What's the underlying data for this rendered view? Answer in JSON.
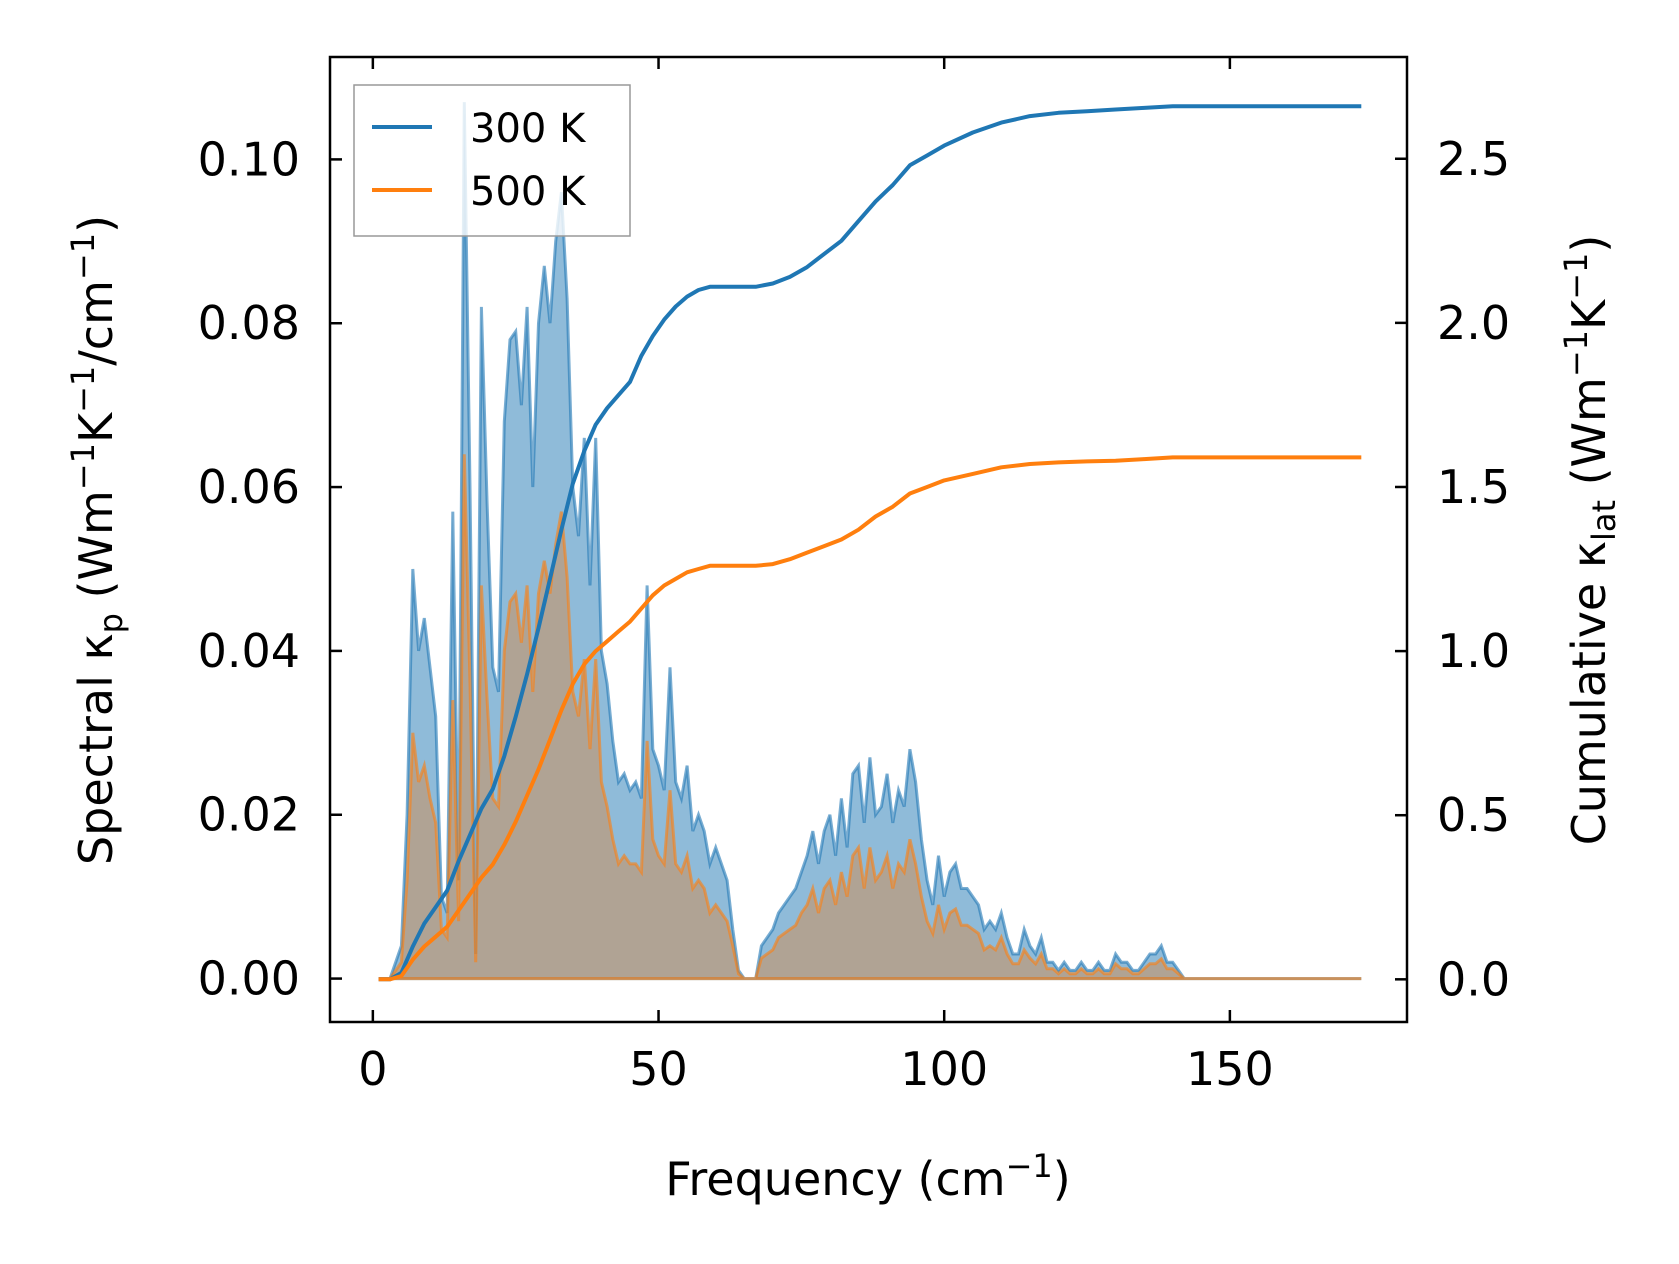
{
  "chart_data": {
    "type": "line",
    "title": "",
    "xlabel": "Frequency (cm",
    "xlabel_sup": "−1",
    "xlabel_end": ")",
    "ylabel_left": {
      "pre": "Spectral κ",
      "sub": "p",
      "a": " (Wm",
      "s1": "−1",
      "b": "K",
      "s2": "−1",
      "c": "/cm",
      "s3": "−1",
      "d": ")"
    },
    "ylabel_right": {
      "pre": "Cumulative κ",
      "sub": "lat",
      "a": " (Wm",
      "s1": "−1",
      "b": "K",
      "s2": "−1",
      "c": ")"
    },
    "xlim": [
      -7.5,
      181
    ],
    "ylim_left": [
      -0.0053,
      0.1125
    ],
    "ylim_right": [
      -0.13,
      2.81
    ],
    "x_ticks": [
      0,
      50,
      100,
      150
    ],
    "x_tick_labels": [
      "0",
      "50",
      "100",
      "150"
    ],
    "y_left_ticks": [
      0.0,
      0.02,
      0.04,
      0.06,
      0.08,
      0.1
    ],
    "y_left_tick_labels": [
      "0.00",
      "0.02",
      "0.04",
      "0.06",
      "0.08",
      "0.10"
    ],
    "y_right_ticks": [
      0.0,
      0.5,
      1.0,
      1.5,
      2.0,
      2.5
    ],
    "y_right_tick_labels": [
      "0.0",
      "0.5",
      "1.0",
      "1.5",
      "2.0",
      "2.5"
    ],
    "legend": {
      "placement": "top-left",
      "entries": [
        {
          "name": "300 K",
          "color": "#1f77b4"
        },
        {
          "name": "500 K",
          "color": "#ff7f0e"
        }
      ]
    },
    "series": [
      {
        "name": "300 K",
        "axis": "left",
        "kind": "spectral-filled",
        "color": "#1f77b4",
        "fill": "#1f77b4",
        "x": [
          1,
          3,
          5,
          6,
          7,
          8,
          9,
          10,
          11,
          12,
          13,
          14,
          15,
          16,
          17,
          18,
          19,
          20,
          21,
          22,
          23,
          24,
          25,
          26,
          27,
          28,
          29,
          30,
          31,
          32,
          33,
          34,
          35,
          36,
          37,
          38,
          39,
          40,
          41,
          42,
          43,
          44,
          45,
          46,
          47,
          48,
          49,
          50,
          51,
          52,
          53,
          54,
          55,
          56,
          57,
          58,
          59,
          60,
          61,
          62,
          63,
          64,
          65,
          66,
          67,
          68,
          69,
          70,
          71,
          72,
          73,
          74,
          75,
          76,
          77,
          78,
          79,
          80,
          81,
          82,
          83,
          84,
          85,
          86,
          87,
          88,
          89,
          90,
          91,
          92,
          93,
          94,
          95,
          96,
          97,
          98,
          99,
          100,
          101,
          102,
          103,
          104,
          105,
          106,
          107,
          108,
          109,
          110,
          111,
          112,
          113,
          114,
          115,
          116,
          117,
          118,
          119,
          120,
          121,
          122,
          123,
          124,
          125,
          126,
          127,
          128,
          129,
          130,
          131,
          132,
          133,
          134,
          135,
          136,
          137,
          138,
          139,
          140,
          141,
          142,
          143,
          145,
          150,
          160,
          173
        ],
        "values": [
          0,
          0,
          0.004,
          0.02,
          0.05,
          0.04,
          0.044,
          0.038,
          0.032,
          0.01,
          0.008,
          0.057,
          0.012,
          0.107,
          0.06,
          0.003,
          0.082,
          0.058,
          0.038,
          0.035,
          0.068,
          0.078,
          0.079,
          0.07,
          0.082,
          0.06,
          0.08,
          0.087,
          0.08,
          0.09,
          0.096,
          0.083,
          0.06,
          0.054,
          0.066,
          0.048,
          0.066,
          0.04,
          0.036,
          0.029,
          0.024,
          0.025,
          0.023,
          0.024,
          0.022,
          0.048,
          0.028,
          0.026,
          0.023,
          0.038,
          0.024,
          0.022,
          0.026,
          0.018,
          0.02,
          0.018,
          0.014,
          0.016,
          0.014,
          0.012,
          0.006,
          0.001,
          0,
          0,
          0,
          0.004,
          0.005,
          0.006,
          0.008,
          0.009,
          0.01,
          0.011,
          0.013,
          0.015,
          0.018,
          0.014,
          0.018,
          0.02,
          0.015,
          0.022,
          0.016,
          0.025,
          0.026,
          0.019,
          0.027,
          0.02,
          0.021,
          0.025,
          0.019,
          0.023,
          0.021,
          0.028,
          0.024,
          0.017,
          0.012,
          0.009,
          0.015,
          0.01,
          0.013,
          0.014,
          0.011,
          0.011,
          0.01,
          0.009,
          0.006,
          0.007,
          0.006,
          0.008,
          0.005,
          0.003,
          0.003,
          0.006,
          0.004,
          0.003,
          0.005,
          0.002,
          0.002,
          0.001,
          0.002,
          0.001,
          0.001,
          0.002,
          0.001,
          0.001,
          0.002,
          0.001,
          0.001,
          0.003,
          0.002,
          0.002,
          0.001,
          0.001,
          0.002,
          0.003,
          0.003,
          0.004,
          0.002,
          0.002,
          0.001,
          0,
          0,
          0,
          0,
          0,
          0
        ]
      },
      {
        "name": "500 K",
        "axis": "left",
        "kind": "spectral-filled",
        "color": "#ff7f0e",
        "fill": "#d28c50",
        "x": [
          1,
          3,
          5,
          6,
          7,
          8,
          9,
          10,
          11,
          12,
          13,
          14,
          15,
          16,
          17,
          18,
          19,
          20,
          21,
          22,
          23,
          24,
          25,
          26,
          27,
          28,
          29,
          30,
          31,
          32,
          33,
          34,
          35,
          36,
          37,
          38,
          39,
          40,
          41,
          42,
          43,
          44,
          45,
          46,
          47,
          48,
          49,
          50,
          51,
          52,
          53,
          54,
          55,
          56,
          57,
          58,
          59,
          60,
          61,
          62,
          63,
          64,
          65,
          66,
          67,
          68,
          69,
          70,
          71,
          72,
          73,
          74,
          75,
          76,
          77,
          78,
          79,
          80,
          81,
          82,
          83,
          84,
          85,
          86,
          87,
          88,
          89,
          90,
          91,
          92,
          93,
          94,
          95,
          96,
          97,
          98,
          99,
          100,
          101,
          102,
          103,
          104,
          105,
          106,
          107,
          108,
          109,
          110,
          111,
          112,
          113,
          114,
          115,
          116,
          117,
          118,
          119,
          120,
          121,
          122,
          123,
          124,
          125,
          126,
          127,
          128,
          129,
          130,
          131,
          132,
          133,
          134,
          135,
          136,
          137,
          138,
          139,
          140,
          141,
          142,
          143,
          145,
          150,
          160,
          173
        ],
        "values": [
          0,
          0,
          0.002,
          0.012,
          0.03,
          0.024,
          0.026,
          0.022,
          0.019,
          0.006,
          0.005,
          0.034,
          0.007,
          0.064,
          0.036,
          0.002,
          0.048,
          0.034,
          0.022,
          0.021,
          0.04,
          0.046,
          0.047,
          0.041,
          0.048,
          0.035,
          0.047,
          0.051,
          0.047,
          0.053,
          0.057,
          0.049,
          0.035,
          0.032,
          0.039,
          0.028,
          0.039,
          0.024,
          0.021,
          0.017,
          0.014,
          0.015,
          0.014,
          0.014,
          0.013,
          0.029,
          0.017,
          0.015,
          0.014,
          0.023,
          0.014,
          0.013,
          0.015,
          0.011,
          0.012,
          0.011,
          0.008,
          0.009,
          0.008,
          0.007,
          0.004,
          0.0006,
          0,
          0,
          0,
          0.0025,
          0.003,
          0.0035,
          0.005,
          0.0055,
          0.006,
          0.0065,
          0.008,
          0.009,
          0.011,
          0.008,
          0.011,
          0.012,
          0.009,
          0.013,
          0.01,
          0.015,
          0.016,
          0.011,
          0.016,
          0.012,
          0.013,
          0.015,
          0.011,
          0.014,
          0.013,
          0.017,
          0.014,
          0.01,
          0.007,
          0.0055,
          0.009,
          0.006,
          0.008,
          0.0085,
          0.0065,
          0.0065,
          0.006,
          0.0055,
          0.0035,
          0.004,
          0.0035,
          0.005,
          0.003,
          0.0018,
          0.0018,
          0.0035,
          0.0025,
          0.0018,
          0.003,
          0.0012,
          0.0012,
          0.0006,
          0.0012,
          0.0006,
          0.0006,
          0.0012,
          0.0006,
          0.0006,
          0.0012,
          0.0006,
          0.0006,
          0.0018,
          0.0012,
          0.0012,
          0.0006,
          0.0006,
          0.0012,
          0.0018,
          0.0018,
          0.0024,
          0.0012,
          0.0012,
          0.0006,
          0,
          0,
          0,
          0,
          0,
          0
        ]
      },
      {
        "name": "300 K cumulative",
        "axis": "right",
        "kind": "line",
        "color": "#1f77b4",
        "x": [
          1,
          3,
          5,
          7,
          9,
          11,
          13,
          15,
          17,
          19,
          21,
          23,
          25,
          27,
          29,
          31,
          33,
          35,
          37,
          39,
          41,
          43,
          45,
          47,
          49,
          51,
          53,
          55,
          57,
          59,
          61,
          63,
          65,
          67,
          70,
          73,
          76,
          79,
          82,
          85,
          88,
          91,
          94,
          97,
          100,
          105,
          110,
          115,
          120,
          125,
          130,
          135,
          140,
          150,
          160,
          173
        ],
        "values": [
          0,
          0,
          0.02,
          0.1,
          0.17,
          0.22,
          0.27,
          0.36,
          0.44,
          0.52,
          0.58,
          0.68,
          0.8,
          0.93,
          1.07,
          1.22,
          1.37,
          1.51,
          1.61,
          1.69,
          1.74,
          1.78,
          1.82,
          1.9,
          1.96,
          2.01,
          2.05,
          2.08,
          2.1,
          2.11,
          2.11,
          2.11,
          2.11,
          2.11,
          2.12,
          2.14,
          2.17,
          2.21,
          2.25,
          2.31,
          2.37,
          2.42,
          2.48,
          2.51,
          2.54,
          2.58,
          2.61,
          2.63,
          2.64,
          2.645,
          2.65,
          2.655,
          2.66,
          2.66,
          2.66,
          2.66
        ]
      },
      {
        "name": "500 K cumulative",
        "axis": "right",
        "kind": "line",
        "color": "#ff7f0e",
        "x": [
          1,
          3,
          5,
          7,
          9,
          11,
          13,
          15,
          17,
          19,
          21,
          23,
          25,
          27,
          29,
          31,
          33,
          35,
          37,
          39,
          41,
          43,
          45,
          47,
          49,
          51,
          53,
          55,
          57,
          59,
          61,
          63,
          65,
          67,
          70,
          73,
          76,
          79,
          82,
          85,
          88,
          91,
          94,
          97,
          100,
          105,
          110,
          115,
          120,
          125,
          130,
          135,
          140,
          150,
          160,
          173
        ],
        "values": [
          0,
          0,
          0.01,
          0.06,
          0.1,
          0.13,
          0.16,
          0.21,
          0.26,
          0.31,
          0.35,
          0.41,
          0.48,
          0.56,
          0.64,
          0.73,
          0.82,
          0.9,
          0.96,
          1.0,
          1.03,
          1.06,
          1.09,
          1.13,
          1.17,
          1.2,
          1.22,
          1.24,
          1.25,
          1.26,
          1.26,
          1.26,
          1.26,
          1.26,
          1.265,
          1.28,
          1.3,
          1.32,
          1.34,
          1.37,
          1.41,
          1.44,
          1.48,
          1.5,
          1.52,
          1.54,
          1.56,
          1.57,
          1.575,
          1.578,
          1.58,
          1.585,
          1.59,
          1.59,
          1.59,
          1.59
        ]
      }
    ]
  }
}
